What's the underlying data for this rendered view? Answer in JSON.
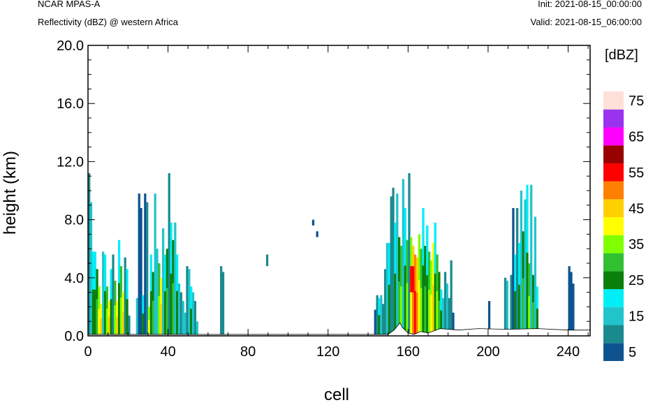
{
  "header": {
    "model": "NCAR MPAS-A",
    "field": "Reflectivity (dBZ) @ western Africa",
    "init": "Init: 2021-08-15_00:00:00",
    "valid": "Valid: 2021-08-15_06:00:00"
  },
  "chart_data": {
    "type": "heatmap",
    "xlabel": "cell",
    "ylabel": "height (km)",
    "xlim": [
      0,
      251
    ],
    "ylim": [
      0,
      20
    ],
    "x_ticks": [
      0,
      40,
      80,
      120,
      160,
      200,
      240
    ],
    "y_ticks": [
      "0.0",
      "4.0",
      "8.0",
      "12.0",
      "16.0",
      "20.0"
    ],
    "colorbar": {
      "title": "[dBZ]",
      "levels": [
        5,
        10,
        15,
        20,
        25,
        30,
        35,
        40,
        45,
        50,
        55,
        60,
        65,
        70,
        75
      ],
      "labeled_levels": [
        "5",
        "15",
        "25",
        "35",
        "45",
        "55",
        "65",
        "75"
      ],
      "colors": [
        "#0e5390",
        "#1b8a8e",
        "#22c4cc",
        "#00eef5",
        "#0b7f0b",
        "#32c032",
        "#80ff00",
        "#ffff00",
        "#ffd000",
        "#ff8000",
        "#ff0000",
        "#990000",
        "#ff00ff",
        "#9933ee",
        "#ffe0d8"
      ]
    },
    "columns": [
      {
        "x": [
          0,
          1
        ],
        "top": 11.2,
        "v": 10
      },
      {
        "x": [
          1,
          2
        ],
        "top": 9.2,
        "v": 15
      },
      {
        "x": [
          2,
          4
        ],
        "top": 5.8,
        "v": 20
      },
      {
        "x": [
          4,
          5
        ],
        "top": 4.6,
        "v": 25
      },
      {
        "x": [
          5,
          6
        ],
        "top": 3.4,
        "v": 35
      },
      {
        "x": [
          6,
          7
        ],
        "top": 2.2,
        "v": 40
      },
      {
        "x": [
          7,
          8
        ],
        "top": 5.8,
        "v": 15
      },
      {
        "x": [
          8,
          9
        ],
        "top": 5.6,
        "v": 20
      },
      {
        "x": [
          9,
          10
        ],
        "top": 3.4,
        "v": 30
      },
      {
        "x": [
          10,
          11
        ],
        "top": 2.4,
        "v": 40
      },
      {
        "x": [
          11,
          12
        ],
        "top": 4.6,
        "v": 20
      },
      {
        "x": [
          12,
          13
        ],
        "top": 5.6,
        "v": 10
      },
      {
        "x": [
          13,
          14
        ],
        "top": 3.8,
        "v": 30
      },
      {
        "x": [
          14,
          15
        ],
        "top": 2.4,
        "v": 40
      },
      {
        "x": [
          15,
          16
        ],
        "top": 6.6,
        "v": 20
      },
      {
        "x": [
          16,
          17
        ],
        "top": 4.8,
        "v": 30
      },
      {
        "x": [
          17,
          18
        ],
        "top": 3.0,
        "v": 40
      },
      {
        "x": [
          18,
          19
        ],
        "top": 5.4,
        "v": 10
      },
      {
        "x": [
          19,
          20
        ],
        "top": 4.6,
        "v": 20
      },
      {
        "x": [
          20,
          21
        ],
        "top": 1.4,
        "v": 10
      },
      {
        "x": [
          24,
          25
        ],
        "top": 2.6,
        "v": 15
      },
      {
        "x": [
          25,
          26
        ],
        "top": 9.8,
        "v": 5
      },
      {
        "x": [
          26,
          27
        ],
        "top": 8.8,
        "v": 5
      },
      {
        "x": [
          27,
          28
        ],
        "top": 2.8,
        "v": 20
      },
      {
        "x": [
          28,
          29
        ],
        "top": 9.8,
        "v": 5
      },
      {
        "x": [
          29,
          30
        ],
        "top": 9.2,
        "v": 10
      },
      {
        "x": [
          30,
          31
        ],
        "top": 2.0,
        "v": 35
      },
      {
        "x": [
          31,
          32
        ],
        "top": 5.6,
        "v": 20
      },
      {
        "x": [
          32,
          33
        ],
        "top": 4.4,
        "v": 25
      },
      {
        "x": [
          33,
          34
        ],
        "top": 9.8,
        "v": 15
      },
      {
        "x": [
          34,
          35
        ],
        "top": 6.0,
        "v": 15
      },
      {
        "x": [
          35,
          36
        ],
        "top": 5.0,
        "v": 30
      },
      {
        "x": [
          36,
          37
        ],
        "top": 4.0,
        "v": 40
      },
      {
        "x": [
          37,
          38
        ],
        "top": 7.4,
        "v": 15
      },
      {
        "x": [
          38,
          39
        ],
        "top": 5.6,
        "v": 20
      },
      {
        "x": [
          39,
          40
        ],
        "top": 6.0,
        "v": 25
      },
      {
        "x": [
          40,
          41
        ],
        "top": 11.2,
        "v": 10
      },
      {
        "x": [
          41,
          42
        ],
        "top": 7.8,
        "v": 20
      },
      {
        "x": [
          42,
          43
        ],
        "top": 6.6,
        "v": 25
      },
      {
        "x": [
          43,
          44
        ],
        "top": 7.8,
        "v": 15
      },
      {
        "x": [
          44,
          45
        ],
        "top": 5.6,
        "v": 20
      },
      {
        "x": [
          45,
          46
        ],
        "top": 3.6,
        "v": 15
      },
      {
        "x": [
          46,
          47
        ],
        "top": 3.0,
        "v": 10
      },
      {
        "x": [
          47,
          48
        ],
        "top": 2.4,
        "v": 15
      },
      {
        "x": [
          48,
          49
        ],
        "top": 1.6,
        "v": 15
      },
      {
        "x": [
          49,
          50
        ],
        "top": 4.8,
        "v": 10
      },
      {
        "x": [
          50,
          51
        ],
        "top": 4.6,
        "v": 15
      },
      {
        "x": [
          51,
          52
        ],
        "top": 3.4,
        "v": 20
      },
      {
        "x": [
          52,
          53
        ],
        "top": 3.0,
        "v": 15
      },
      {
        "x": [
          53,
          54
        ],
        "top": 2.4,
        "v": 10
      },
      {
        "x": [
          54,
          55
        ],
        "top": 1.0,
        "v": 15
      },
      {
        "x": [
          66,
          67
        ],
        "top": 4.8,
        "v": 10
      },
      {
        "x": [
          67,
          68
        ],
        "top": 4.4,
        "v": 10
      },
      {
        "x": [
          143,
          144
        ],
        "top": 1.8,
        "v": 5
      },
      {
        "x": [
          144,
          145
        ],
        "top": 2.8,
        "v": 10
      },
      {
        "x": [
          145,
          146
        ],
        "top": 2.6,
        "v": 20
      },
      {
        "x": [
          146,
          147
        ],
        "top": 2.8,
        "v": 15
      },
      {
        "x": [
          147,
          148
        ],
        "top": 2.2,
        "v": 10
      },
      {
        "x": [
          148,
          149
        ],
        "top": 4.6,
        "v": 10
      },
      {
        "x": [
          149,
          150
        ],
        "top": 6.4,
        "v": 15
      },
      {
        "x": [
          150,
          151
        ],
        "top": 6.4,
        "v": 20
      },
      {
        "x": [
          151,
          152
        ],
        "top": 9.6,
        "v": 10
      },
      {
        "x": [
          152,
          153
        ],
        "top": 10.2,
        "v": 10
      },
      {
        "x": [
          153,
          154
        ],
        "top": 7.8,
        "v": 20
      },
      {
        "x": [
          154,
          155
        ],
        "top": 9.8,
        "v": 15
      },
      {
        "x": [
          155,
          156
        ],
        "top": 6.8,
        "v": 25
      },
      {
        "x": [
          156,
          157
        ],
        "top": 6.2,
        "v": 30
      },
      {
        "x": [
          157,
          158
        ],
        "top": 10.8,
        "v": 15
      },
      {
        "x": [
          158,
          159
        ],
        "top": 8.8,
        "v": 20
      },
      {
        "x": [
          159,
          160
        ],
        "top": 6.6,
        "v": 30
      },
      {
        "x": [
          160,
          161
        ],
        "top": 11.2,
        "v": 10
      },
      {
        "x": [
          161,
          162
        ],
        "top": 6.8,
        "v": 35
      },
      {
        "x": [
          162,
          163
        ],
        "top": 6.2,
        "v": 45
      },
      {
        "x": [
          163,
          164
        ],
        "top": 5.6,
        "v": 50
      },
      {
        "x": [
          164,
          165
        ],
        "top": 5.4,
        "v": 45
      },
      {
        "x": [
          165,
          166
        ],
        "top": 7.0,
        "v": 35
      },
      {
        "x": [
          166,
          167
        ],
        "top": 6.0,
        "v": 30
      },
      {
        "x": [
          167,
          168
        ],
        "top": 8.8,
        "v": 20
      },
      {
        "x": [
          168,
          169
        ],
        "top": 6.2,
        "v": 25
      },
      {
        "x": [
          169,
          170
        ],
        "top": 7.6,
        "v": 20
      },
      {
        "x": [
          170,
          171
        ],
        "top": 5.8,
        "v": 30
      },
      {
        "x": [
          171,
          172
        ],
        "top": 5.2,
        "v": 35
      },
      {
        "x": [
          172,
          173
        ],
        "top": 6.4,
        "v": 40
      },
      {
        "x": [
          173,
          174
        ],
        "top": 7.8,
        "v": 20
      },
      {
        "x": [
          174,
          175
        ],
        "top": 5.6,
        "v": 30
      },
      {
        "x": [
          175,
          176
        ],
        "top": 4.4,
        "v": 25
      },
      {
        "x": [
          176,
          177
        ],
        "top": 3.2,
        "v": 20
      },
      {
        "x": [
          177,
          178
        ],
        "top": 2.6,
        "v": 15
      },
      {
        "x": [
          178,
          179
        ],
        "top": 4.4,
        "v": 10
      },
      {
        "x": [
          179,
          180
        ],
        "top": 3.6,
        "v": 15
      },
      {
        "x": [
          180,
          181
        ],
        "top": 2.6,
        "v": 10
      },
      {
        "x": [
          181,
          182
        ],
        "top": 5.2,
        "v": 10
      },
      {
        "x": [
          182,
          183
        ],
        "top": 1.6,
        "v": 5
      },
      {
        "x": [
          200,
          201
        ],
        "top": 2.4,
        "v": 5
      },
      {
        "x": [
          208,
          209
        ],
        "top": 4.0,
        "v": 10
      },
      {
        "x": [
          209,
          210
        ],
        "top": 3.8,
        "v": 15
      },
      {
        "x": [
          211,
          212
        ],
        "top": 4.2,
        "v": 10
      },
      {
        "x": [
          212,
          213
        ],
        "top": 8.8,
        "v": 5
      },
      {
        "x": [
          213,
          214
        ],
        "top": 5.6,
        "v": 20
      },
      {
        "x": [
          214,
          215
        ],
        "top": 8.8,
        "v": 10
      },
      {
        "x": [
          215,
          216
        ],
        "top": 6.4,
        "v": 20
      },
      {
        "x": [
          216,
          217
        ],
        "top": 10.0,
        "v": 15
      },
      {
        "x": [
          217,
          218
        ],
        "top": 7.2,
        "v": 25
      },
      {
        "x": [
          218,
          219
        ],
        "top": 9.4,
        "v": 15
      },
      {
        "x": [
          219,
          220
        ],
        "top": 10.4,
        "v": 20
      },
      {
        "x": [
          220,
          221
        ],
        "top": 5.0,
        "v": 30
      },
      {
        "x": [
          221,
          222
        ],
        "top": 10.4,
        "v": 15
      },
      {
        "x": [
          222,
          223
        ],
        "top": 4.2,
        "v": 25
      },
      {
        "x": [
          223,
          224
        ],
        "top": 8.2,
        "v": 15
      },
      {
        "x": [
          224,
          225
        ],
        "top": 3.4,
        "v": 20
      },
      {
        "x": [
          240,
          241
        ],
        "top": 4.8,
        "v": 5
      },
      {
        "x": [
          241,
          242
        ],
        "top": 4.4,
        "v": 5
      },
      {
        "x": [
          242,
          243
        ],
        "top": 3.6,
        "v": 5
      }
    ],
    "blobs": [
      {
        "x": [
          89,
          90
        ],
        "y": [
          4.8,
          5.6
        ],
        "v": 10
      },
      {
        "x": [
          112,
          113
        ],
        "y": [
          7.6,
          8.0
        ],
        "v": 5
      },
      {
        "x": [
          114,
          115
        ],
        "y": [
          6.8,
          7.2
        ],
        "v": 5
      },
      {
        "x": [
          161,
          163
        ],
        "y": [
          3.0,
          4.8
        ],
        "v": 55
      }
    ],
    "terrain": [
      [
        0,
        0.1
      ],
      [
        150,
        0.1
      ],
      [
        153,
        0.4
      ],
      [
        156,
        0.9
      ],
      [
        157,
        0.6
      ],
      [
        160,
        0.2
      ],
      [
        163,
        0.1
      ],
      [
        166,
        0.3
      ],
      [
        170,
        0.2
      ],
      [
        176,
        0.5
      ],
      [
        185,
        0.4
      ],
      [
        195,
        0.5
      ],
      [
        210,
        0.45
      ],
      [
        225,
        0.5
      ],
      [
        240,
        0.4
      ],
      [
        251,
        0.4
      ]
    ]
  }
}
